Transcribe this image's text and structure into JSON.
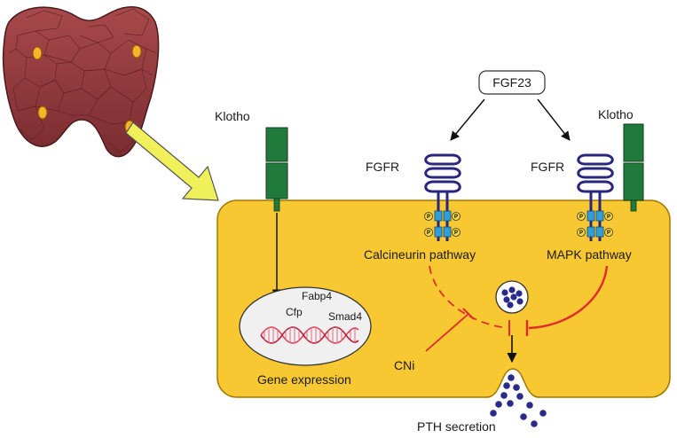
{
  "labels": {
    "fgf23": "FGF23",
    "klotho_left": "Klotho",
    "klotho_right": "Klotho",
    "fgfr_left": "FGFR",
    "fgfr_right": "FGFR",
    "calcineurin": "Calcineurin pathway",
    "mapk": "MAPK pathway",
    "genes": [
      "Fabp4",
      "Cfp",
      "Smad4"
    ],
    "gene_expression": "Gene expression",
    "cni": "CNi",
    "pth_secretion": "PTH secretion",
    "phospho": "P"
  },
  "colors": {
    "cell_fill": "#f8c832",
    "cell_stroke": "#a07800",
    "gland": "#a3474a",
    "nodule": "#f5b52a",
    "klotho": "#1f7a3b",
    "receptor": "#2a2680",
    "kinase": "#2f9fd8",
    "inhibition": "#e02b2b",
    "pth_granule": "#2a2a8c",
    "nucleus": "#f0f0f0",
    "dna": "#e0405a",
    "yellow_arrow": "#f0f05a"
  }
}
